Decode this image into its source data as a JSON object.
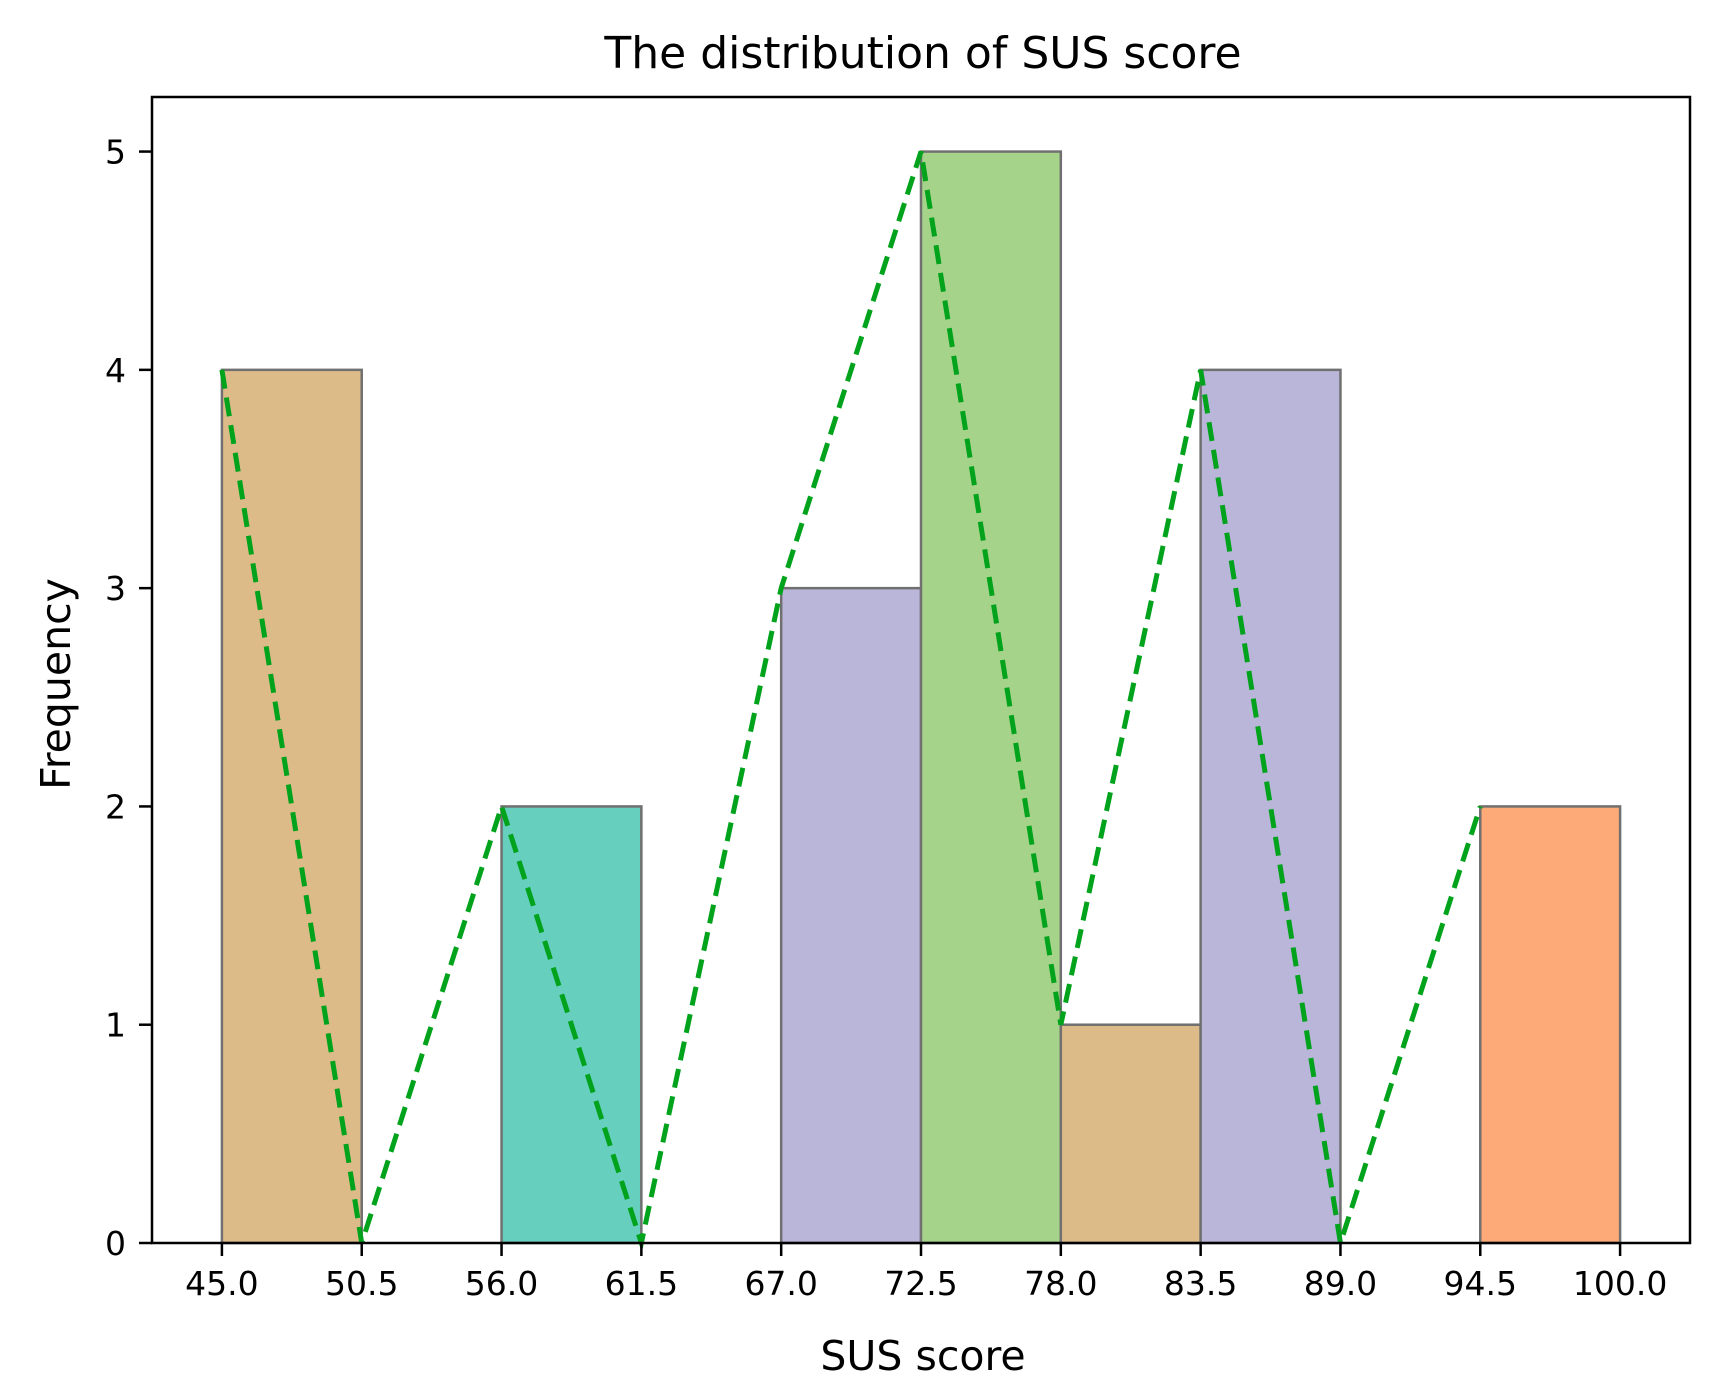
{
  "chart_data": {
    "type": "bar",
    "title": "The distribution of SUS score",
    "xlabel": "SUS score",
    "ylabel": "Frequency",
    "bin_edges": [
      45.0,
      50.5,
      56.0,
      61.5,
      67.0,
      72.5,
      78.0,
      83.5,
      89.0,
      94.5,
      100.0
    ],
    "bin_counts": [
      4,
      0,
      2,
      0,
      3,
      5,
      1,
      4,
      0,
      2
    ],
    "bar_colors": [
      "#ddbb89",
      "#66cfbd",
      "#66cfbd",
      "#66cfbd",
      "#b9b6d9",
      "#a6d38a",
      "#ddbb89",
      "#b9b6d9",
      "#b9b6d9",
      "#fdaa78"
    ],
    "polygon": {
      "style": "dashed",
      "color": "#00a31b",
      "x": [
        45.0,
        50.5,
        56.0,
        61.5,
        67.0,
        72.5,
        78.0,
        83.5,
        89.0,
        94.5
      ],
      "y": [
        4,
        0,
        2,
        0,
        3,
        5,
        1,
        4,
        0,
        2
      ]
    },
    "xticks": [
      "45.0",
      "50.5",
      "56.0",
      "61.5",
      "67.0",
      "72.5",
      "78.0",
      "83.5",
      "89.0",
      "94.5",
      "100.0"
    ],
    "yticks": [
      "0",
      "1",
      "2",
      "3",
      "4",
      "5"
    ],
    "xlim": [
      42.25,
      102.75
    ],
    "ylim": [
      0,
      5.25
    ],
    "grid": false,
    "legend": "none"
  }
}
